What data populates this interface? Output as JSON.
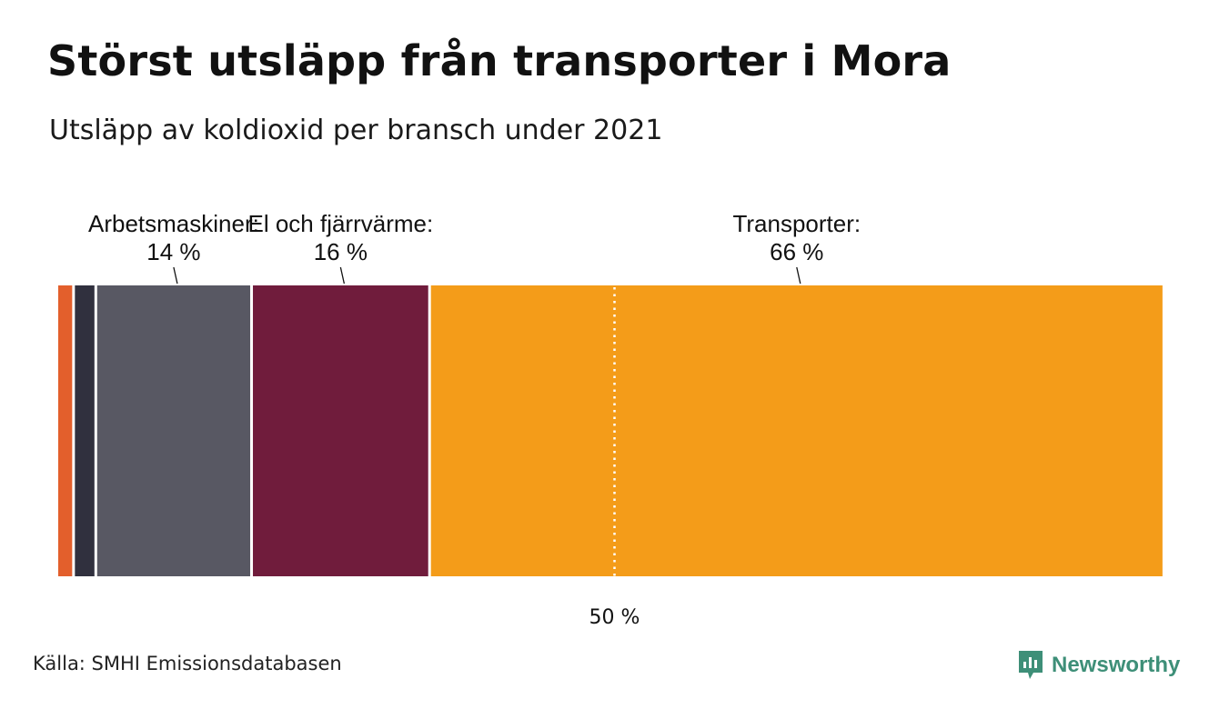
{
  "title": "Störst utsläpp från transporter i Mora",
  "subtitle": "Utsläpp av koldioxid per bransch under 2021",
  "source": "Källa: SMHI Emissionsdatabasen",
  "brand": {
    "name": "Newsworthy",
    "icon": "newsworthy-logo-icon",
    "color": "#3e8f78"
  },
  "chart_data": {
    "type": "bar",
    "orientation": "horizontal",
    "stacked": true,
    "unit": "%",
    "xlim": [
      0,
      100
    ],
    "series": [
      {
        "label": "",
        "value": 1.5,
        "color": "#e35f2c"
      },
      {
        "label": "",
        "value": 2.0,
        "color": "#30303e"
      },
      {
        "label": "Arbetsmaskiner:",
        "value": 14,
        "value_label": "14 %",
        "color": "#585863"
      },
      {
        "label": "El och fjärrvärme:",
        "value": 16,
        "value_label": "16 %",
        "color": "#701c3c"
      },
      {
        "label": "Transporter:",
        "value": 66,
        "value_label": "66 %",
        "color": "#f49c19"
      }
    ],
    "reference_line": {
      "value": 50,
      "label": "50 %",
      "style": "dotted",
      "color": "#ffffff"
    }
  }
}
